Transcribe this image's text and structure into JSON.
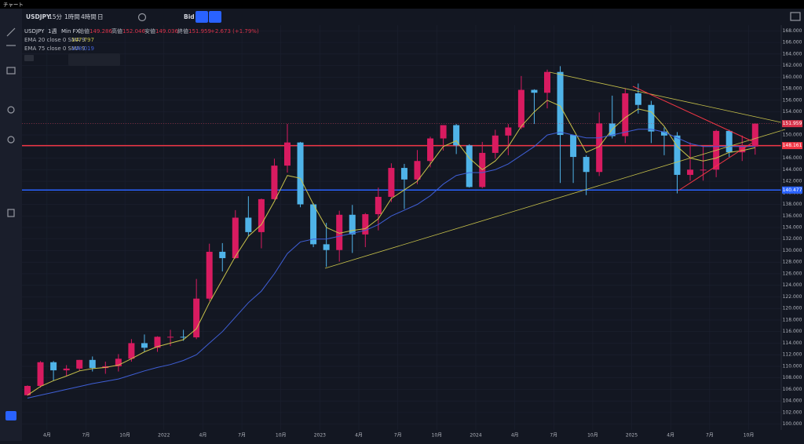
{
  "window_title": "チャート",
  "toolbar": {
    "symbol": "USDJPY",
    "intervals": [
      "15分",
      "1時間",
      "4時間",
      "日"
    ],
    "price_source": "Bid"
  },
  "chart_data": {
    "type": "candlestick",
    "symbol_label": "USDJPY",
    "interval": "1週",
    "source": "Min FX",
    "ohlc_header": [
      {
        "label": "始値",
        "value": 149.286
      },
      {
        "label": "高値",
        "value": 152.046
      },
      {
        "label": "安値",
        "value": 149.036
      },
      {
        "label": "終値",
        "value": 151.959
      }
    ],
    "change": "+2.673 (+1.79%)",
    "up_color": "#d81b60",
    "down_color": "#4fb3e8",
    "categories": [
      "2021-02",
      "2021-03",
      "2021-04",
      "2021-05",
      "2021-06",
      "2021-07",
      "2021-08",
      "2021-09",
      "2021-10",
      "2021-11",
      "2021-12",
      "2022-01",
      "2022-02",
      "2022-03",
      "2022-04",
      "2022-05",
      "2022-06",
      "2022-07",
      "2022-08",
      "2022-09",
      "2022-10",
      "2022-11",
      "2022-12",
      "2023-01",
      "2023-02",
      "2023-03",
      "2023-04",
      "2023-05",
      "2023-06",
      "2023-07",
      "2023-08",
      "2023-09",
      "2023-10",
      "2023-11",
      "2023-12",
      "2024-01",
      "2024-02",
      "2024-03",
      "2024-04",
      "2024-05",
      "2024-06",
      "2024-07",
      "2024-08",
      "2024-09",
      "2024-10",
      "2024-11",
      "2024-12",
      "2025-01",
      "2025-02",
      "2025-03",
      "2025-04",
      "2025-05",
      "2025-06",
      "2025-07",
      "2025-08",
      "2025-09",
      "2025-10"
    ],
    "open": [
      105,
      106.6,
      110.7,
      109.3,
      109.6,
      111.1,
      109.7,
      110,
      111.3,
      114,
      113.2,
      115.1,
      115.1,
      115,
      121.7,
      129.8,
      128.7,
      135.7,
      133.2,
      138.9,
      144.7,
      148.7,
      138,
      131.1,
      130.1,
      136.2,
      132.8,
      136.3,
      139.3,
      144.3,
      142.3,
      145.5,
      149.4,
      151.7,
      148.2,
      141,
      146.9,
      149.9,
      151.3,
      157.8,
      157.3,
      160.9,
      150,
      146.2,
      143.6,
      152,
      149.8,
      157.2,
      155.2,
      150.6,
      149.9,
      143.1,
      144,
      144,
      150.7,
      147,
      148
    ],
    "high": [
      106.7,
      110.9,
      110.9,
      110.2,
      111.1,
      111.7,
      110.8,
      112.1,
      114.7,
      115.5,
      115.2,
      116.3,
      116.3,
      125.1,
      131.2,
      131.3,
      137,
      139.4,
      139,
      145.9,
      151.9,
      148.8,
      138.2,
      134.8,
      136.9,
      137.9,
      136.5,
      140.9,
      145.1,
      145,
      147.4,
      149.7,
      151.7,
      151.9,
      148.4,
      148.8,
      150.9,
      151.9,
      160.2,
      157.9,
      161.3,
      161.9,
      150,
      146.5,
      153.9,
      156.8,
      158.1,
      158.9,
      155.9,
      151.3,
      150.5,
      148.7,
      148,
      150.9,
      150.9,
      149.9,
      152
    ],
    "low": [
      104.9,
      106.3,
      107.5,
      108.3,
      109.2,
      109.1,
      108.7,
      109.1,
      110.8,
      112.5,
      112.5,
      113.5,
      114.4,
      114.7,
      121.3,
      126.4,
      128.6,
      132.5,
      130.4,
      138.8,
      143.5,
      137.5,
      130.6,
      127.2,
      128.1,
      129.6,
      130.6,
      133.5,
      138.4,
      137.2,
      141.5,
      144.4,
      147.3,
      146.7,
      140.9,
      140.8,
      145.9,
      146.5,
      151,
      151.9,
      154.6,
      141.7,
      141.7,
      139.6,
      142.9,
      149.4,
      148.6,
      153.7,
      148.6,
      146.5,
      139.9,
      142.1,
      142.1,
      142.7,
      146.2,
      145.5,
      146.6
    ],
    "close": [
      106.6,
      110.7,
      109.3,
      109.6,
      111.1,
      109.7,
      110,
      111.3,
      114,
      113.2,
      115.1,
      115.1,
      115,
      121.7,
      129.8,
      128.7,
      135.7,
      133.2,
      138.9,
      144.7,
      148.7,
      138,
      131.1,
      130.1,
      136.2,
      132.8,
      136.3,
      139.3,
      144.3,
      142.3,
      145.5,
      149.4,
      151.7,
      148.2,
      141,
      146.9,
      149.9,
      151.3,
      157.8,
      157.3,
      160.9,
      150,
      146.2,
      143.6,
      152,
      149.8,
      157.2,
      155.2,
      150.6,
      149.9,
      143.1,
      144,
      144,
      150.7,
      147,
      148,
      151.959
    ],
    "series": [
      {
        "name": "EMA 20 close 0 SMA 9",
        "color": "#c9c34a",
        "last_value": 147.797,
        "values": [
          105,
          106.5,
          107.5,
          108.3,
          109.2,
          109.6,
          109.8,
          110.2,
          111.3,
          112.5,
          113.4,
          114,
          114.6,
          116.5,
          121,
          125,
          129,
          132.5,
          134.5,
          138.5,
          143,
          142.5,
          138,
          134,
          133,
          133.5,
          133.8,
          135.5,
          139,
          140.5,
          142,
          145,
          148,
          149,
          146,
          144,
          145.5,
          148,
          151.5,
          154,
          156,
          155,
          151,
          147,
          148,
          151,
          153,
          154.5,
          154,
          151.5,
          148,
          146,
          145.5,
          146,
          147,
          147.3,
          147.797
        ]
      },
      {
        "name": "EMA 75 close 0 SMA 9",
        "color": "#3f5fd6",
        "last_value": 148.019,
        "values": [
          104.5,
          105,
          105.5,
          106,
          106.5,
          107,
          107.4,
          107.8,
          108.5,
          109.2,
          109.8,
          110.3,
          111,
          112,
          114,
          116,
          118.5,
          121,
          123,
          126,
          129.5,
          131.5,
          132,
          132,
          132.5,
          133,
          133.5,
          134.5,
          136,
          137,
          138,
          139.5,
          141.5,
          143,
          143.5,
          143.5,
          144,
          145,
          146.5,
          148,
          150,
          150.5,
          150,
          149.5,
          149.5,
          150,
          150.5,
          151,
          151,
          150.5,
          149.5,
          148.5,
          148,
          148,
          148,
          148,
          148.019
        ]
      }
    ],
    "hlines": [
      {
        "value": 148.161,
        "color": "#f23645"
      },
      {
        "value": 140.477,
        "color": "#2962ff"
      }
    ],
    "last_price": 151.959,
    "ylim": [
      99,
      169
    ],
    "yticks": [
      {
        "value": 100,
        "label": "100.000"
      },
      {
        "value": 102,
        "label": "102.000"
      },
      {
        "value": 104,
        "label": "104.000"
      },
      {
        "value": 106,
        "label": "106.000"
      },
      {
        "value": 108,
        "label": "108.000"
      },
      {
        "value": 110,
        "label": "110.000"
      },
      {
        "value": 112,
        "label": "112.000"
      },
      {
        "value": 114,
        "label": "114.000"
      },
      {
        "value": 116,
        "label": "116.000"
      },
      {
        "value": 118,
        "label": "118.000"
      },
      {
        "value": 120,
        "label": "120.000"
      },
      {
        "value": 122,
        "label": "122.000"
      },
      {
        "value": 124,
        "label": "124.000"
      },
      {
        "value": 126,
        "label": "126.000"
      },
      {
        "value": 128,
        "label": "128.000"
      },
      {
        "value": 130,
        "label": "130.000"
      },
      {
        "value": 132,
        "label": "132.000"
      },
      {
        "value": 134,
        "label": "134.000"
      },
      {
        "value": 136,
        "label": "136.000"
      },
      {
        "value": 138,
        "label": "138.000"
      },
      {
        "value": 140,
        "label": "140.000"
      },
      {
        "value": 142,
        "label": "142.000"
      },
      {
        "value": 144,
        "label": "144.000"
      },
      {
        "value": 146,
        "label": "146.000"
      },
      {
        "value": 148,
        "label": "148.000"
      },
      {
        "value": 150,
        "label": "150.000"
      },
      {
        "value": 152,
        "label": "152.000"
      },
      {
        "value": 154,
        "label": "154.000"
      },
      {
        "value": 156,
        "label": "156.000"
      },
      {
        "value": 158,
        "label": "158.000"
      },
      {
        "value": 160,
        "label": "160.000"
      },
      {
        "value": 162,
        "label": "162.000"
      },
      {
        "value": 164,
        "label": "164.000"
      },
      {
        "value": 166,
        "label": "166.000"
      },
      {
        "value": 168,
        "label": "168.000"
      }
    ],
    "xticks": [
      {
        "value": "2021-04",
        "label": "4月"
      },
      {
        "value": "2021-07",
        "label": "7月"
      },
      {
        "value": "2021-10",
        "label": "10月"
      },
      {
        "value": "2022-01",
        "label": "2022"
      },
      {
        "value": "2022-04",
        "label": "4月"
      },
      {
        "value": "2022-07",
        "label": "7月"
      },
      {
        "value": "2022-10",
        "label": "10月"
      },
      {
        "value": "2023-01",
        "label": "2023"
      },
      {
        "value": "2023-04",
        "label": "4月"
      },
      {
        "value": "2023-07",
        "label": "7月"
      },
      {
        "value": "2023-10",
        "label": "10月"
      },
      {
        "value": "2024-01",
        "label": "2024"
      },
      {
        "value": "2024-04",
        "label": "4月"
      },
      {
        "value": "2024-07",
        "label": "7月"
      },
      {
        "value": "2024-10",
        "label": "10月"
      },
      {
        "value": "2025-01",
        "label": "2025"
      },
      {
        "value": "2025-04",
        "label": "4月"
      },
      {
        "value": "2025-07",
        "label": "7月"
      },
      {
        "value": "2025-10",
        "label": "10月"
      }
    ],
    "grid": true
  }
}
